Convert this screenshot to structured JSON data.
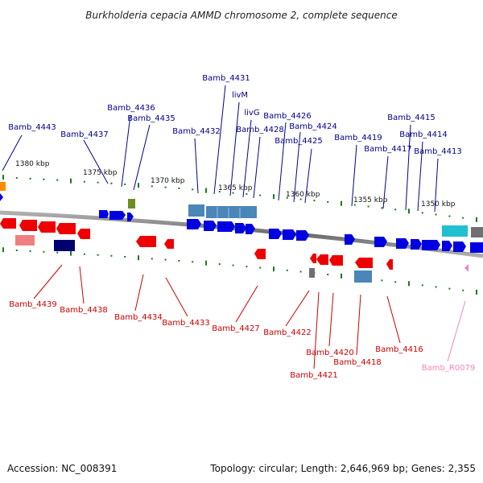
{
  "title": "Burkholderia cepacia AMMD chromosome 2, complete sequence",
  "footer": {
    "accession": "Accession: NC_008391",
    "topology": "Topology: circular; Length: 2,646,969 bp; Genes: 2,355"
  },
  "colors": {
    "forward_gene": "#0000e0",
    "reverse_gene": "#ee0000",
    "forward_label": "#00008b",
    "reverse_label": "#cc0000",
    "rna_label": "#ee88bb",
    "backbone": "#888888",
    "tick": "#1a7a1a",
    "steelblue_block": "#4a86b8",
    "cyan_block": "#20c0d0"
  },
  "scale_labels": [
    "1380 kbp",
    "1375 kbp",
    "1370 kbp",
    "1365 kbp",
    "1360 kbp",
    "1355 kbp",
    "1350 kbp"
  ],
  "forward_genes": [
    "Bamb_4443",
    "Bamb_4437",
    "Bamb_4436",
    "Bamb_4435",
    "Bamb_4432",
    "Bamb_4431",
    "livM",
    "livG",
    "Bamb_4428",
    "Bamb_4426",
    "Bamb_4424",
    "Bamb_4425",
    "Bamb_4419",
    "Bamb_4417",
    "Bamb_4415",
    "Bamb_4414",
    "Bamb_4413"
  ],
  "reverse_genes": [
    "Bamb_4439",
    "Bamb_4438",
    "Bamb_4434",
    "Bamb_4433",
    "Bamb_4427",
    "Bamb_4422",
    "Bamb_4421",
    "Bamb_4420",
    "Bamb_4418",
    "Bamb_4416"
  ],
  "rna_genes": [
    "Bamb_R0079"
  ]
}
